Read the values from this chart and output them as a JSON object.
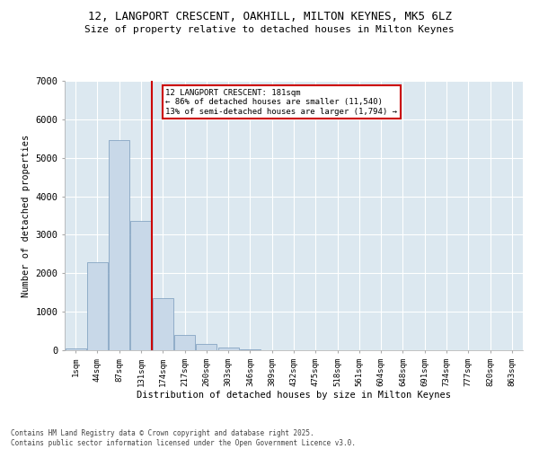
{
  "title_line1": "12, LANGPORT CRESCENT, OAKHILL, MILTON KEYNES, MK5 6LZ",
  "title_line2": "Size of property relative to detached houses in Milton Keynes",
  "xlabel": "Distribution of detached houses by size in Milton Keynes",
  "ylabel": "Number of detached properties",
  "categories": [
    "1sqm",
    "44sqm",
    "87sqm",
    "131sqm",
    "174sqm",
    "217sqm",
    "260sqm",
    "303sqm",
    "346sqm",
    "389sqm",
    "432sqm",
    "475sqm",
    "518sqm",
    "561sqm",
    "604sqm",
    "648sqm",
    "691sqm",
    "734sqm",
    "777sqm",
    "820sqm",
    "863sqm"
  ],
  "bar_heights": [
    50,
    2280,
    5450,
    3350,
    1350,
    400,
    170,
    70,
    20,
    5,
    2,
    0,
    0,
    0,
    0,
    0,
    0,
    0,
    0,
    0,
    0
  ],
  "bar_color": "#c8d8e8",
  "bar_edge_color": "#7799bb",
  "property_line_color": "#cc0000",
  "property_line_x": 3.5,
  "annotation_title": "12 LANGPORT CRESCENT: 181sqm",
  "annotation_line2": "← 86% of detached houses are smaller (11,540)",
  "annotation_line3": "13% of semi-detached houses are larger (1,794) →",
  "annotation_box_color": "#cc0000",
  "ylim": [
    0,
    7000
  ],
  "yticks": [
    0,
    1000,
    2000,
    3000,
    4000,
    5000,
    6000,
    7000
  ],
  "background_color": "#dce8f0",
  "grid_color": "#ffffff",
  "fig_background": "#ffffff",
  "footer_line1": "Contains HM Land Registry data © Crown copyright and database right 2025.",
  "footer_line2": "Contains public sector information licensed under the Open Government Licence v3.0."
}
